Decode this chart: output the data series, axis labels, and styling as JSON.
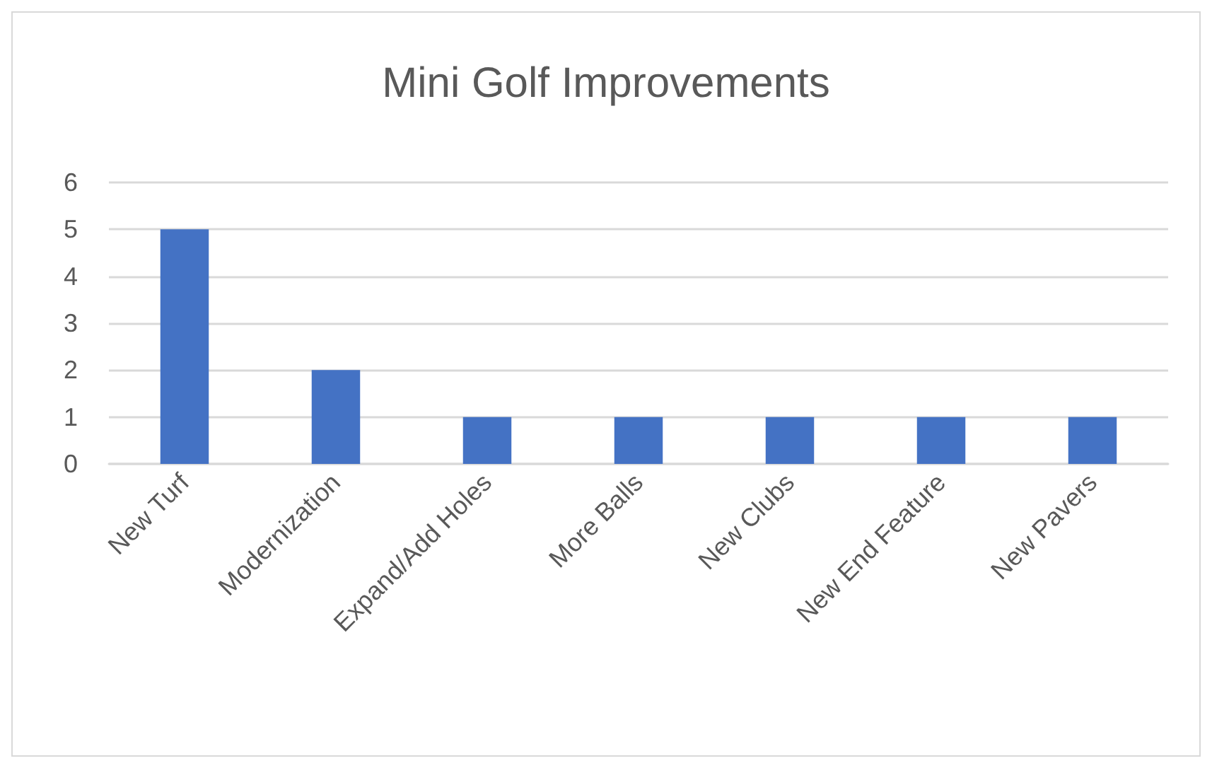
{
  "chart_data": {
    "type": "bar",
    "title": "Mini Golf Improvements",
    "categories": [
      "New Turf",
      "Modernization",
      "Expand/Add Holes",
      "More Balls",
      "New Clubs",
      "New End Feature",
      "New Pavers"
    ],
    "values": [
      5,
      2,
      1,
      1,
      1,
      1,
      1
    ],
    "color": "#4472c4",
    "ylim": [
      0,
      6
    ],
    "yticks": [
      0,
      1,
      2,
      3,
      4,
      5,
      6
    ],
    "grid": "y"
  }
}
